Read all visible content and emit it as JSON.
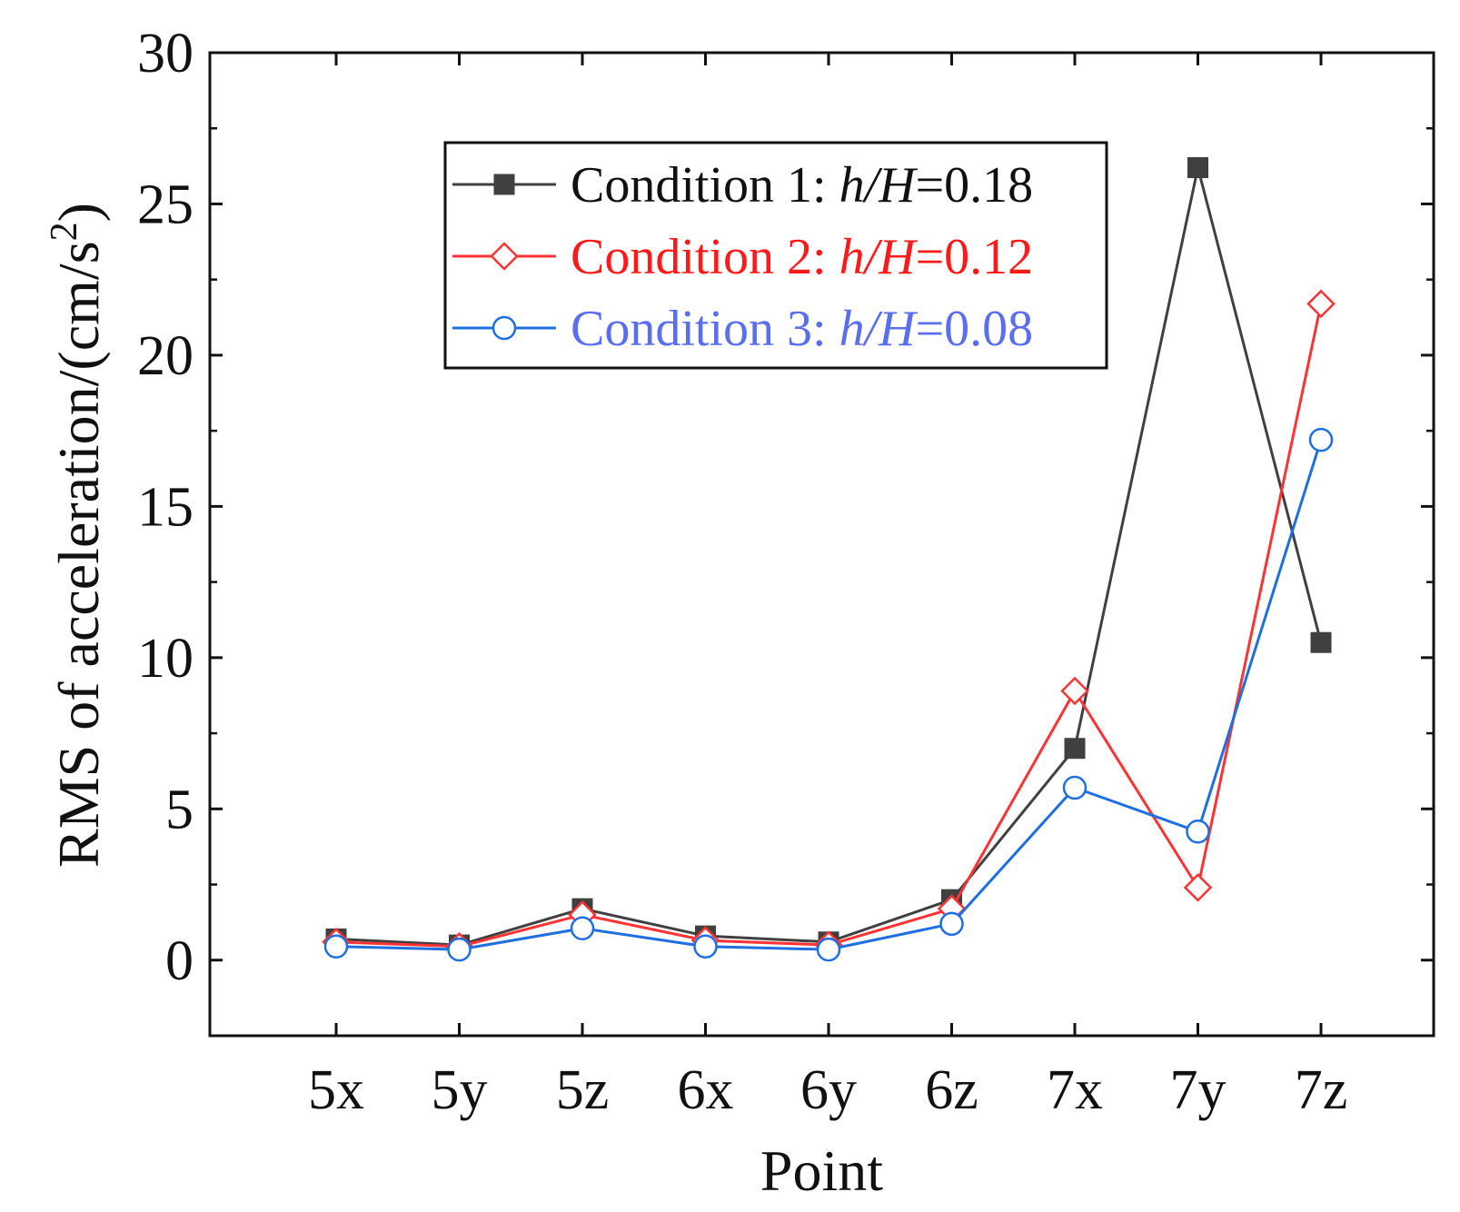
{
  "chart_data": {
    "type": "line",
    "title": "",
    "xlabel": "Point",
    "ylabel": "RMS of acceleration/(cm/s²)",
    "ylabel_main": "RMS of acceleration/(cm/s",
    "ylabel_sup": "2",
    "ylabel_close": ")",
    "categories": [
      "5x",
      "5y",
      "5z",
      "6x",
      "6y",
      "6z",
      "7x",
      "7y",
      "7z"
    ],
    "ylim": [
      -2.5,
      30
    ],
    "yticks": [
      0,
      5,
      10,
      15,
      20,
      25,
      30
    ],
    "grid": false,
    "legend_position": "top-center",
    "series": [
      {
        "name": "Condition 1: h/H=0.18",
        "label_prefix": "Condition 1: ",
        "label_var": "h/H",
        "label_value": "=0.18",
        "color": "#404040",
        "text_color": "#111111",
        "marker": "filled-square",
        "values": [
          0.7,
          0.5,
          1.7,
          0.8,
          0.6,
          2.0,
          7.0,
          26.2,
          10.5
        ]
      },
      {
        "name": "Condition 2: h/H=0.12",
        "label_prefix": "Condition 2: ",
        "label_var": "h/H",
        "label_value": "=0.12",
        "color": "#ff3333",
        "text_color": "#ff1a1a",
        "marker": "open-diamond",
        "values": [
          0.6,
          0.45,
          1.5,
          0.65,
          0.5,
          1.7,
          8.9,
          2.4,
          21.7
        ]
      },
      {
        "name": "Condition 3: h/H=0.08",
        "label_prefix": "Condition 3: ",
        "label_var": "h/H",
        "label_value": "=0.08",
        "color": "#1f6fe0",
        "text_color": "#5a6ef0",
        "marker": "open-circle",
        "values": [
          0.45,
          0.35,
          1.05,
          0.45,
          0.35,
          1.2,
          5.7,
          4.25,
          17.2
        ]
      }
    ]
  }
}
